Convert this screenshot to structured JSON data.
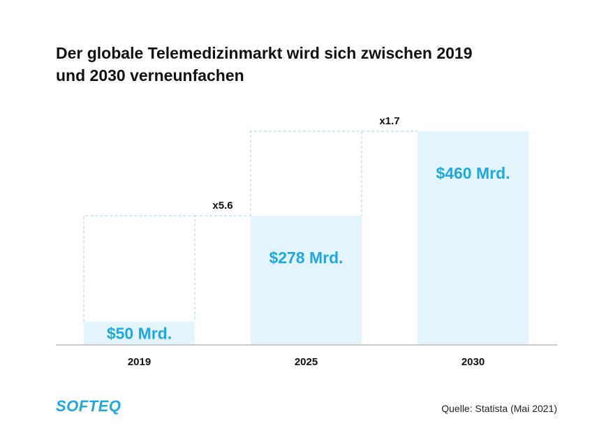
{
  "title": {
    "line1": "Der globale Telemedizinmarkt wird sich zwischen 2019",
    "line2": "und 2030 verneunfachen"
  },
  "chart_data": {
    "type": "bar",
    "title": "Der globale Telemedizinmarkt wird sich zwischen 2019 und 2030 verneunfachen",
    "categories": [
      "2019",
      "2025",
      "2030"
    ],
    "values": [
      50,
      278,
      460
    ],
    "value_labels": [
      "$50 Mrd.",
      "$278 Mrd.",
      "$460 Mrd."
    ],
    "unit": "Mrd. USD",
    "growth_annotations": [
      {
        "from": "2019",
        "to": "2025",
        "label": "x5.6"
      },
      {
        "from": "2025",
        "to": "2030",
        "label": "x1.7"
      }
    ],
    "ylim": [
      0,
      460
    ],
    "xlabel": "",
    "ylabel": ""
  },
  "colors": {
    "bar_fill": "#e3f4fc",
    "accent": "#1ea8e0",
    "dash": "#9dd6ef",
    "axis": "#bbbbbb"
  },
  "brand": {
    "logo_text": "SOFTEQ"
  },
  "source": "Quelle: Statista (Mai 2021)"
}
